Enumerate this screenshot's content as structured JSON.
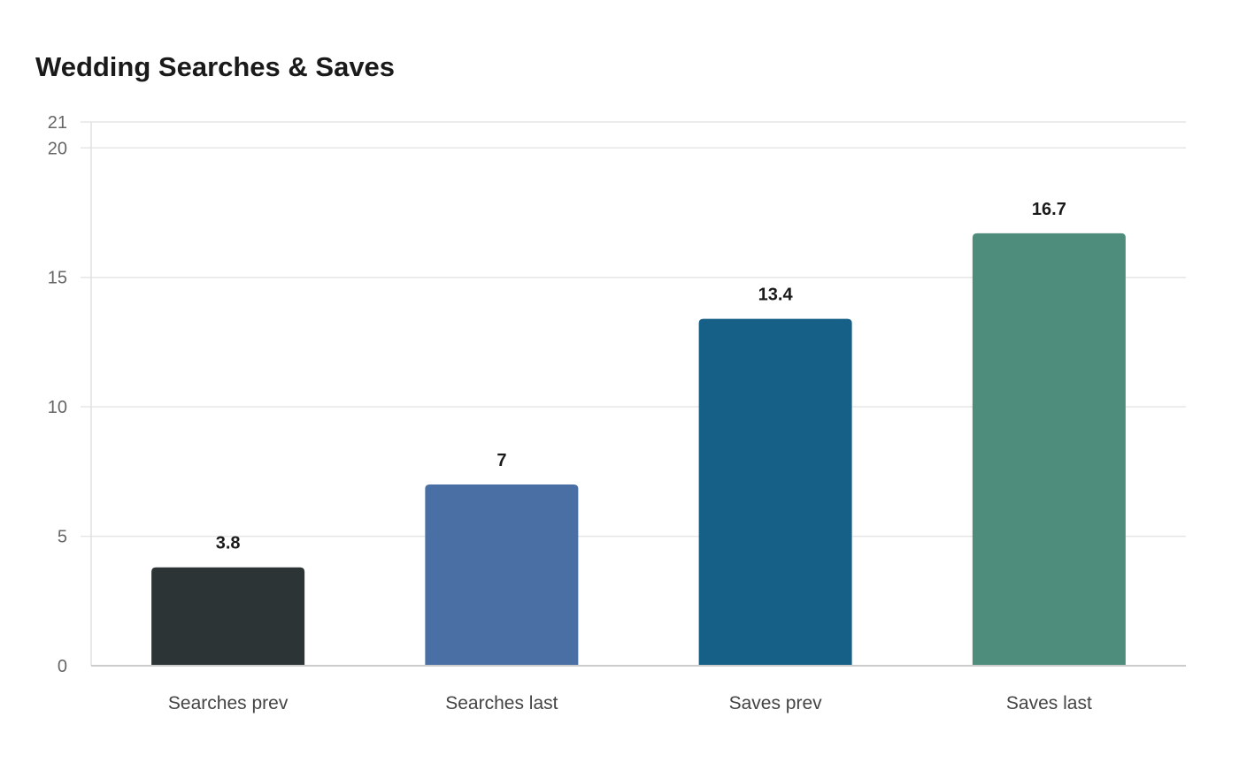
{
  "chart_data": {
    "type": "bar",
    "title": "Wedding Searches & Saves",
    "xlabel": "",
    "ylabel": "",
    "categories": [
      "Searches prev",
      "Searches last",
      "Saves prev",
      "Saves last"
    ],
    "values": [
      3.8,
      7,
      13.4,
      16.7
    ],
    "value_labels": [
      "3.8",
      "7",
      "13.4",
      "16.7"
    ],
    "colors": [
      "#2d3436",
      "#4a6fa5",
      "#166088",
      "#4e8d7c"
    ],
    "ylim": [
      0,
      21
    ],
    "yticks": [
      0,
      5,
      10,
      15,
      20,
      21
    ],
    "grid": true,
    "legend": "none"
  }
}
